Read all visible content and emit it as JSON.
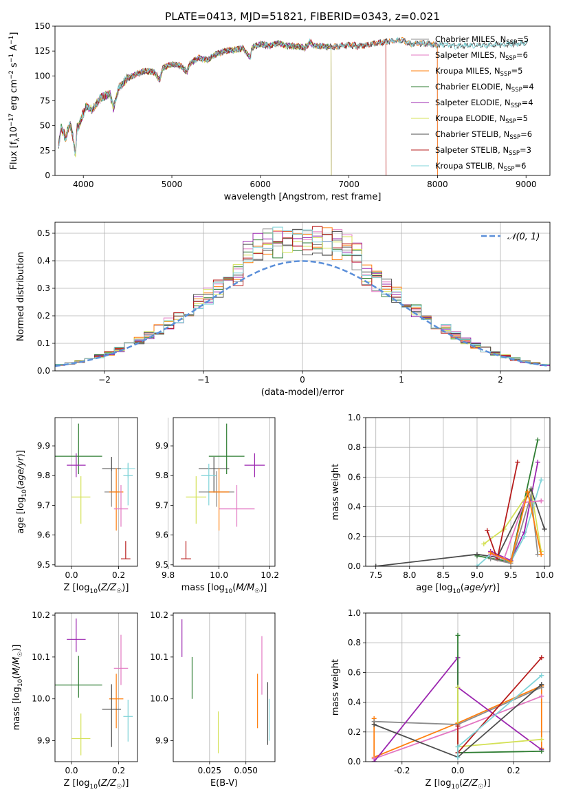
{
  "colors": {
    "Chabrier MILES": "#8c8c8c",
    "Salpeter MILES": "#e377c2",
    "Kroupa MILES": "#ff7f0e",
    "Chabrier ELODIE": "#2e7d32",
    "Salpeter ELODIE": "#9c27b0",
    "Kroupa ELODIE": "#d4e157",
    "Chabrier STELIB": "#4d4d4d",
    "Salpeter STELIB": "#b71c1c",
    "Kroupa STELIB": "#7fd3d8"
  },
  "chart_data": [
    {
      "type": "line",
      "title": "PLATE=0413, MJD=51821, FIBERID=0343, z=0.021",
      "xlabel": "wavelength [Angstrom, rest frame]",
      "ylabel": "Flux [fλ10⁻¹⁷ erg cm⁻² s⁻¹ A⁻¹]",
      "xlim": [
        3680,
        9270
      ],
      "ylim": [
        0,
        150
      ],
      "xticks": [
        4000,
        5000,
        6000,
        7000,
        8000,
        9000
      ],
      "yticks": [
        0,
        25,
        50,
        75,
        100,
        125,
        150
      ],
      "spectrum_knots": [
        [
          3720,
          30
        ],
        [
          3750,
          48
        ],
        [
          3800,
          38
        ],
        [
          3850,
          52
        ],
        [
          3880,
          40
        ],
        [
          3910,
          20
        ],
        [
          3930,
          48
        ],
        [
          3960,
          52
        ],
        [
          3990,
          60
        ],
        [
          4030,
          70
        ],
        [
          4100,
          66
        ],
        [
          4200,
          78
        ],
        [
          4300,
          82
        ],
        [
          4340,
          68
        ],
        [
          4400,
          88
        ],
        [
          4500,
          98
        ],
        [
          4600,
          102
        ],
        [
          4700,
          105
        ],
        [
          4800,
          104
        ],
        [
          4860,
          96
        ],
        [
          4900,
          108
        ],
        [
          5000,
          112
        ],
        [
          5100,
          110
        ],
        [
          5170,
          104
        ],
        [
          5200,
          112
        ],
        [
          5300,
          118
        ],
        [
          5400,
          116
        ],
        [
          5500,
          122
        ],
        [
          5600,
          125
        ],
        [
          5700,
          126
        ],
        [
          5800,
          128
        ],
        [
          5890,
          118
        ],
        [
          5900,
          128
        ],
        [
          6000,
          132
        ],
        [
          6100,
          130
        ],
        [
          6200,
          133
        ],
        [
          6300,
          130
        ],
        [
          6400,
          130
        ],
        [
          6500,
          128
        ],
        [
          6563,
          134
        ],
        [
          6600,
          130
        ],
        [
          6700,
          130
        ],
        [
          6800,
          129
        ],
        [
          6900,
          130
        ],
        [
          7000,
          131
        ],
        [
          7100,
          130
        ],
        [
          7200,
          131
        ],
        [
          7300,
          133
        ],
        [
          7400,
          134
        ],
        [
          7500,
          135
        ],
        [
          7600,
          136
        ],
        [
          7700,
          132
        ],
        [
          7800,
          133
        ],
        [
          7900,
          132
        ],
        [
          8000,
          131
        ],
        [
          8100,
          132
        ],
        [
          8200,
          130
        ],
        [
          8400,
          131
        ],
        [
          8600,
          131
        ],
        [
          8800,
          132
        ],
        [
          9000,
          133
        ],
        [
          9050,
          133
        ]
      ],
      "series": [
        {
          "name": "Chabrier MILES, N_SSP=5",
          "xmax": 8000
        },
        {
          "name": "Salpeter MILES, N_SSP=6",
          "xmax": 8000
        },
        {
          "name": "Kroupa MILES, N_SSP=5",
          "xmax": 8000
        },
        {
          "name": "Chabrier ELODIE, N_SSP=4",
          "xmax": 6800
        },
        {
          "name": "Salpeter ELODIE, N_SSP=4",
          "xmax": 6800
        },
        {
          "name": "Kroupa ELODIE, N_SSP=5",
          "xmax": 6800
        },
        {
          "name": "Chabrier STELIB, N_SSP=6",
          "xmax": 9020
        },
        {
          "name": "Salpeter STELIB, N_SSP=3",
          "xmax": 7420
        },
        {
          "name": "Kroupa STELIB, N_SSP=6",
          "xmax": 9020
        }
      ],
      "legend": [
        {
          "label": "Chabrier MILES, N",
          "sub": "SSP",
          "suffix": "=5"
        },
        {
          "label": "Salpeter MILES, N",
          "sub": "SSP",
          "suffix": "=6"
        },
        {
          "label": "Kroupa MILES, N",
          "sub": "SSP",
          "suffix": "=5"
        },
        {
          "label": "Chabrier ELODIE, N",
          "sub": "SSP",
          "suffix": "=4"
        },
        {
          "label": "Salpeter ELODIE, N",
          "sub": "SSP",
          "suffix": "=4"
        },
        {
          "label": "Kroupa ELODIE, N",
          "sub": "SSP",
          "suffix": "=5"
        },
        {
          "label": "Chabrier STELIB, N",
          "sub": "SSP",
          "suffix": "=6"
        },
        {
          "label": "Salpeter STELIB, N",
          "sub": "SSP",
          "suffix": "=3"
        },
        {
          "label": "Kroupa STELIB, N",
          "sub": "SSP",
          "suffix": "=6"
        }
      ],
      "legend_position": "right"
    },
    {
      "type": "histogram",
      "xlabel": "(data-model)/error",
      "ylabel": "Normed distribution",
      "xlim": [
        -2.5,
        2.5
      ],
      "ylim": [
        0,
        0.54
      ],
      "xticks": [
        -2,
        -1,
        0,
        1,
        2
      ],
      "yticks": [
        0.0,
        0.1,
        0.2,
        0.3,
        0.4,
        0.5
      ],
      "bin_width": 0.1,
      "grid": true,
      "reference_curve": {
        "label": "𝒩(0, 1)",
        "mean": 0,
        "sigma": 1,
        "color": "#5b8fd9"
      },
      "legend_position": "top-right"
    },
    {
      "type": "errorbar",
      "xlabel": "Z [log10(Z/Z☉)]",
      "ylabel": "age  [log10(age/yr)]",
      "xlim": [
        -0.07,
        0.28
      ],
      "ylim": [
        9.495,
        9.995
      ],
      "xticks": [
        0.0,
        0.2
      ],
      "yticks": [
        9.5,
        9.6,
        9.7,
        9.8,
        9.9
      ],
      "points": [
        {
          "series": "Chabrier ELODIE",
          "x": 0.03,
          "xerr": 0.1,
          "y": 9.865,
          "yerr": [
            0.06,
            0.11
          ]
        },
        {
          "series": "Salpeter ELODIE",
          "x": 0.02,
          "xerr": 0.04,
          "y": 9.835,
          "yerr": [
            0.04,
            0.04
          ]
        },
        {
          "series": "Chabrier STELIB",
          "x": 0.17,
          "xerr": 0.04,
          "y": 9.823,
          "yerr": [
            0.08,
            0.04
          ]
        },
        {
          "series": "Kroupa STELIB",
          "x": 0.24,
          "xerr": 0.03,
          "y": 9.823,
          "yerr": [
            0.03,
            0.02
          ]
        },
        {
          "series": "Kroupa STELIB",
          "x": 0.24,
          "xerr": 0.02,
          "y": 9.8,
          "yerr": [
            0.1,
            0.04
          ]
        },
        {
          "series": "Chabrier MILES",
          "x": 0.17,
          "xerr": 0.03,
          "y": 9.745,
          "yerr": [
            0.05,
            0.07
          ]
        },
        {
          "series": "Kroupa MILES",
          "x": 0.19,
          "xerr": 0.03,
          "y": 9.745,
          "yerr": [
            0.13,
            0.08
          ]
        },
        {
          "series": "Kroupa ELODIE",
          "x": 0.04,
          "xerr": 0.04,
          "y": 9.728,
          "yerr": [
            0.09,
            0.07
          ]
        },
        {
          "series": "Salpeter MILES",
          "x": 0.21,
          "xerr": 0.03,
          "y": 9.688,
          "yerr": [
            0.06,
            0.08
          ]
        },
        {
          "series": "Salpeter STELIB",
          "x": 0.23,
          "xerr": 0.02,
          "y": 9.52,
          "yerr": [
            0.0,
            0.06
          ]
        }
      ]
    },
    {
      "type": "errorbar",
      "xlabel": "mass [log10(M/M☉)]",
      "xlim": [
        9.82,
        10.22
      ],
      "ylim": [
        9.495,
        9.995
      ],
      "xticks": [
        9.8,
        10.0,
        10.2
      ],
      "yticks": [
        9.5,
        9.6,
        9.7,
        9.8,
        9.9
      ],
      "points": [
        {
          "series": "Chabrier ELODIE",
          "x": 10.03,
          "xerr": 0.07,
          "y": 9.865,
          "yerr": [
            0.06,
            0.11
          ]
        },
        {
          "series": "Salpeter ELODIE",
          "x": 10.14,
          "xerr": 0.04,
          "y": 9.835,
          "yerr": [
            0.04,
            0.04
          ]
        },
        {
          "series": "Chabrier STELIB",
          "x": 9.98,
          "xerr": 0.06,
          "y": 9.823,
          "yerr": [
            0.08,
            0.04
          ]
        },
        {
          "series": "Kroupa STELIB",
          "x": 9.96,
          "xerr": 0.03,
          "y": 9.8,
          "yerr": [
            0.1,
            0.04
          ]
        },
        {
          "series": "Chabrier MILES",
          "x": 9.99,
          "xerr": 0.07,
          "y": 9.745,
          "yerr": [
            0.05,
            0.07
          ]
        },
        {
          "series": "Kroupa MILES",
          "x": 10.0,
          "xerr": 0.04,
          "y": 9.745,
          "yerr": [
            0.13,
            0.08
          ]
        },
        {
          "series": "Kroupa ELODIE",
          "x": 9.91,
          "xerr": 0.04,
          "y": 9.728,
          "yerr": [
            0.09,
            0.07
          ]
        },
        {
          "series": "Salpeter MILES",
          "x": 10.07,
          "xerr": 0.07,
          "y": 9.688,
          "yerr": [
            0.06,
            0.08
          ]
        },
        {
          "series": "Salpeter STELIB",
          "x": 9.87,
          "xerr": 0.02,
          "y": 9.52,
          "yerr": [
            0.0,
            0.06
          ]
        }
      ]
    },
    {
      "type": "line",
      "xlabel": "age  [log10(age/yr)]",
      "ylabel": "mass weight",
      "xlim": [
        7.35,
        10.08
      ],
      "ylim": [
        0,
        1
      ],
      "xticks": [
        7.5,
        8.0,
        8.5,
        9.0,
        9.5,
        10.0
      ],
      "yticks": [
        0.0,
        0.2,
        0.4,
        0.6,
        0.8,
        1.0
      ],
      "grid": true,
      "series": [
        {
          "name": "Chabrier ELODIE",
          "x": [
            9.0,
            9.5,
            9.9
          ],
          "y": [
            0.07,
            0.03,
            0.85
          ]
        },
        {
          "name": "Salpeter ELODIE",
          "x": [
            9.2,
            9.5,
            9.7,
            9.9
          ],
          "y": [
            0.1,
            0.04,
            0.23,
            0.7
          ]
        },
        {
          "name": "Kroupa ELODIE",
          "x": [
            9.1,
            9.4,
            9.8,
            9.95
          ],
          "y": [
            0.15,
            0.25,
            0.52,
            0.1
          ]
        },
        {
          "name": "Chabrier STELIB",
          "x": [
            7.5,
            9.0,
            9.3,
            9.8,
            10.0
          ],
          "y": [
            0.0,
            0.08,
            0.06,
            0.52,
            0.25
          ]
        },
        {
          "name": "Salpeter STELIB",
          "x": [
            9.15,
            9.3,
            9.6
          ],
          "y": [
            0.24,
            0.05,
            0.7
          ]
        },
        {
          "name": "Kroupa STELIB",
          "x": [
            9.0,
            9.2,
            9.5,
            9.7,
            9.95
          ],
          "y": [
            0.0,
            0.08,
            0.03,
            0.2,
            0.58
          ]
        },
        {
          "name": "Chabrier MILES",
          "x": [
            9.2,
            9.5,
            9.8,
            9.9
          ],
          "y": [
            0.05,
            0.02,
            0.48,
            0.08
          ]
        },
        {
          "name": "Salpeter MILES",
          "x": [
            9.2,
            9.4,
            9.7,
            9.95
          ],
          "y": [
            0.08,
            0.05,
            0.43,
            0.44
          ]
        },
        {
          "name": "Kroupa MILES",
          "x": [
            9.2,
            9.5,
            9.75,
            9.95
          ],
          "y": [
            0.09,
            0.03,
            0.5,
            0.08
          ]
        }
      ]
    },
    {
      "type": "errorbar",
      "xlabel": "Z [log10(Z/Z☉)]",
      "ylabel": "mass [log10(M/M☉)]",
      "xlim": [
        -0.07,
        0.28
      ],
      "ylim": [
        9.85,
        10.205
      ],
      "xticks": [
        0.0,
        0.2
      ],
      "yticks": [
        9.9,
        10.0,
        10.1,
        10.2
      ],
      "points": [
        {
          "series": "Salpeter ELODIE",
          "x": 0.02,
          "xerr": 0.04,
          "y": 10.142,
          "yerr": [
            0.03,
            0.05
          ]
        },
        {
          "series": "Salpeter MILES",
          "x": 0.21,
          "xerr": 0.03,
          "y": 10.073,
          "yerr": [
            0.04,
            0.08
          ]
        },
        {
          "series": "Chabrier ELODIE",
          "x": 0.03,
          "xerr": 0.1,
          "y": 10.033,
          "yerr": [
            0.03,
            0.07
          ]
        },
        {
          "series": "Kroupa MILES",
          "x": 0.19,
          "xerr": 0.03,
          "y": 10.0,
          "yerr": [
            0.07,
            0.06
          ]
        },
        {
          "series": "Chabrier STELIB",
          "x": 0.17,
          "xerr": 0.04,
          "y": 9.975,
          "yerr": [
            0.09,
            0.06
          ]
        },
        {
          "series": "Kroupa STELIB",
          "x": 0.24,
          "xerr": 0.02,
          "y": 9.958,
          "yerr": [
            0.06,
            0.04
          ]
        },
        {
          "series": "Kroupa ELODIE",
          "x": 0.04,
          "xerr": 0.04,
          "y": 9.905,
          "yerr": [
            0.04,
            0.06
          ]
        }
      ]
    },
    {
      "type": "errorbar",
      "xlabel": "E(B-V)",
      "xlim": [
        0.0,
        0.07
      ],
      "ylim": [
        9.85,
        10.205
      ],
      "xticks": [
        0.025,
        0.05
      ],
      "yticks": [
        9.9,
        10.0,
        10.1,
        10.2
      ],
      "points": [
        {
          "series": "Salpeter ELODIE",
          "x": 0.006,
          "y": 10.14,
          "yerr": [
            0.04,
            0.05
          ]
        },
        {
          "series": "Chabrier ELODIE",
          "x": 0.013,
          "y": 10.05,
          "yerr": [
            0.05,
            0.05
          ]
        },
        {
          "series": "Kroupa ELODIE",
          "x": 0.031,
          "y": 9.91,
          "yerr": [
            0.04,
            0.06
          ]
        },
        {
          "series": "Kroupa MILES",
          "x": 0.058,
          "y": 10.0,
          "yerr": [
            0.07,
            0.06
          ]
        },
        {
          "series": "Salpeter MILES",
          "x": 0.061,
          "y": 10.08,
          "yerr": [
            0.07,
            0.07
          ]
        },
        {
          "series": "Chabrier STELIB",
          "x": 0.065,
          "y": 9.97,
          "yerr": [
            0.08,
            0.07
          ]
        },
        {
          "series": "Kroupa STELIB",
          "x": 0.066,
          "y": 9.96,
          "yerr": [
            0.06,
            0.04
          ]
        }
      ]
    },
    {
      "type": "line",
      "xlabel": "Z [log10(Z/Z☉)]",
      "ylabel": "mass weight",
      "xlim": [
        -0.33,
        0.33
      ],
      "ylim": [
        0,
        1
      ],
      "xticks": [
        -0.2,
        0.0,
        0.2
      ],
      "yticks": [
        0.0,
        0.2,
        0.4,
        0.6,
        0.8,
        1.0
      ],
      "grid": true,
      "series": [
        {
          "name": "Kroupa MILES",
          "x": [
            -0.3,
            -0.3,
            0.0,
            0.3,
            0.3
          ],
          "y": [
            0.29,
            0.03,
            0.26,
            0.51,
            0.09
          ]
        },
        {
          "name": "Chabrier MILES",
          "x": [
            -0.3,
            0.0,
            0.3
          ],
          "y": [
            0.27,
            0.25,
            0.5
          ]
        },
        {
          "name": "Salpeter MILES",
          "x": [
            -0.3,
            0.0,
            0.3
          ],
          "y": [
            0.02,
            0.22,
            0.44
          ]
        },
        {
          "name": "Salpeter ELODIE",
          "x": [
            -0.3,
            0.0,
            0.0,
            0.3
          ],
          "y": [
            0.0,
            0.7,
            0.5,
            0.08
          ]
        },
        {
          "name": "Chabrier ELODIE",
          "x": [
            0.0,
            0.0,
            0.3
          ],
          "y": [
            0.85,
            0.06,
            0.07
          ]
        },
        {
          "name": "Kroupa ELODIE",
          "x": [
            0.0,
            0.0,
            0.3
          ],
          "y": [
            0.5,
            0.1,
            0.15
          ]
        },
        {
          "name": "Chabrier STELIB",
          "x": [
            -0.3,
            0.0,
            0.3
          ],
          "y": [
            0.25,
            0.03,
            0.52
          ]
        },
        {
          "name": "Salpeter STELIB",
          "x": [
            0.0,
            0.0,
            0.3
          ],
          "y": [
            0.24,
            0.06,
            0.7
          ]
        },
        {
          "name": "Kroupa STELIB",
          "x": [
            0.0,
            0.0,
            0.3
          ],
          "y": [
            0.03,
            0.1,
            0.58
          ]
        }
      ]
    }
  ]
}
